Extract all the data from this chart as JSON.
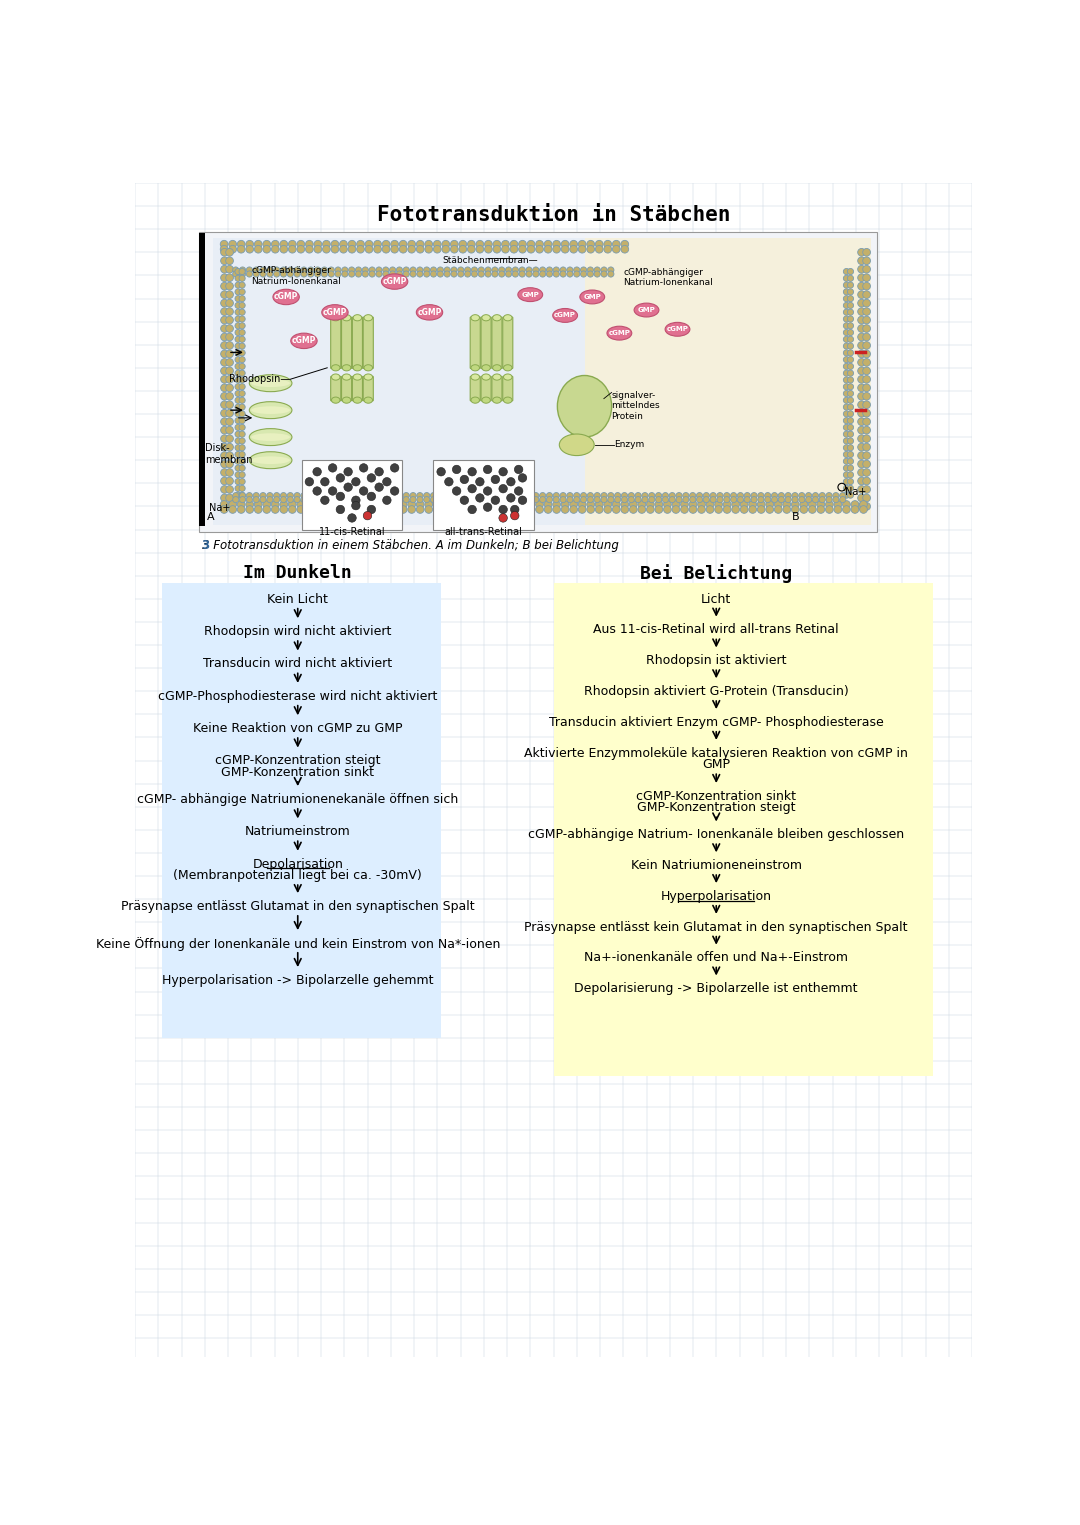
{
  "title": "Fototransduktion in Stäbchen",
  "bg_color": "#ffffff",
  "grid_color": "#c8d4e0",
  "image_caption": "3 Fototransduktion in einem Stäbchen. A im Dunkeln; B bei Belichtung",
  "left_header": "Im Dunkeln",
  "right_header": "Bei Belichtung",
  "left_bg": "#ddeeff",
  "right_bg": "#ffffcc",
  "left_steps": [
    "Kein Licht",
    "Rhodopsin wird nicht aktiviert",
    "Transducin wird nicht aktiviert",
    "cGMP-Phosphodiesterase wird nicht aktiviert",
    "Keine Reaktion von cGMP zu GMP",
    "cGMP-Konzentration steigt\nGMP-Konzentration sinkt",
    "cGMP- abhängige Natriumionenekanäle öffnen sich",
    "Natriumeinstrom",
    "Depolarisation\n(Membranpotenzial liegt bei ca. -30mV)",
    "Präsynapse entlässt Glutamat in den synaptischen Spalt",
    "Keine Öffnung der Ionenkanäle und kein Einstrom von Na*-ionen",
    "Hyperpolarisation -> Bipolarzelle gehemmt"
  ],
  "left_underline": [
    8
  ],
  "right_steps": [
    "Licht",
    "Aus 11-cis-Retinal wird all-trans Retinal",
    "Rhodopsin ist aktiviert",
    "Rhodopsin aktiviert G-Protein (Transducin)",
    "Transducin aktiviert Enzym cGMP- Phosphodiesterase",
    "Aktivierte Enzymmoleküle katalysieren Reaktion von cGMP in\nGMP",
    "cGMP-Konzentration sinkt\nGMP-Konzentration steigt",
    "cGMP-abhängige Natrium- Ionenkanäle bleiben geschlossen",
    "Kein Natriumioneneinstrom",
    "Hyperpolarisation",
    "Präsynapse entlässt kein Glutamat in den synaptischen Spalt",
    "Na+-ionenkanäle offen und Na+-Einstrom",
    "Depolarisierung -> Bipolarzelle ist enthemmt"
  ],
  "right_underline": [
    9
  ],
  "diagram_bg_left": "#e8f0f8",
  "diagram_bg_right": "#f8f5e0",
  "membrane_bead_color": "#c4b06a",
  "membrane_outline_color": "#7a9cb0",
  "channel_color": "#c8d890",
  "channel_edge_color": "#8aaa50",
  "cgmp_color": "#e07090",
  "gmp_color": "#e07090",
  "circle_dark": "#404040",
  "circle_red": "#cc3333"
}
